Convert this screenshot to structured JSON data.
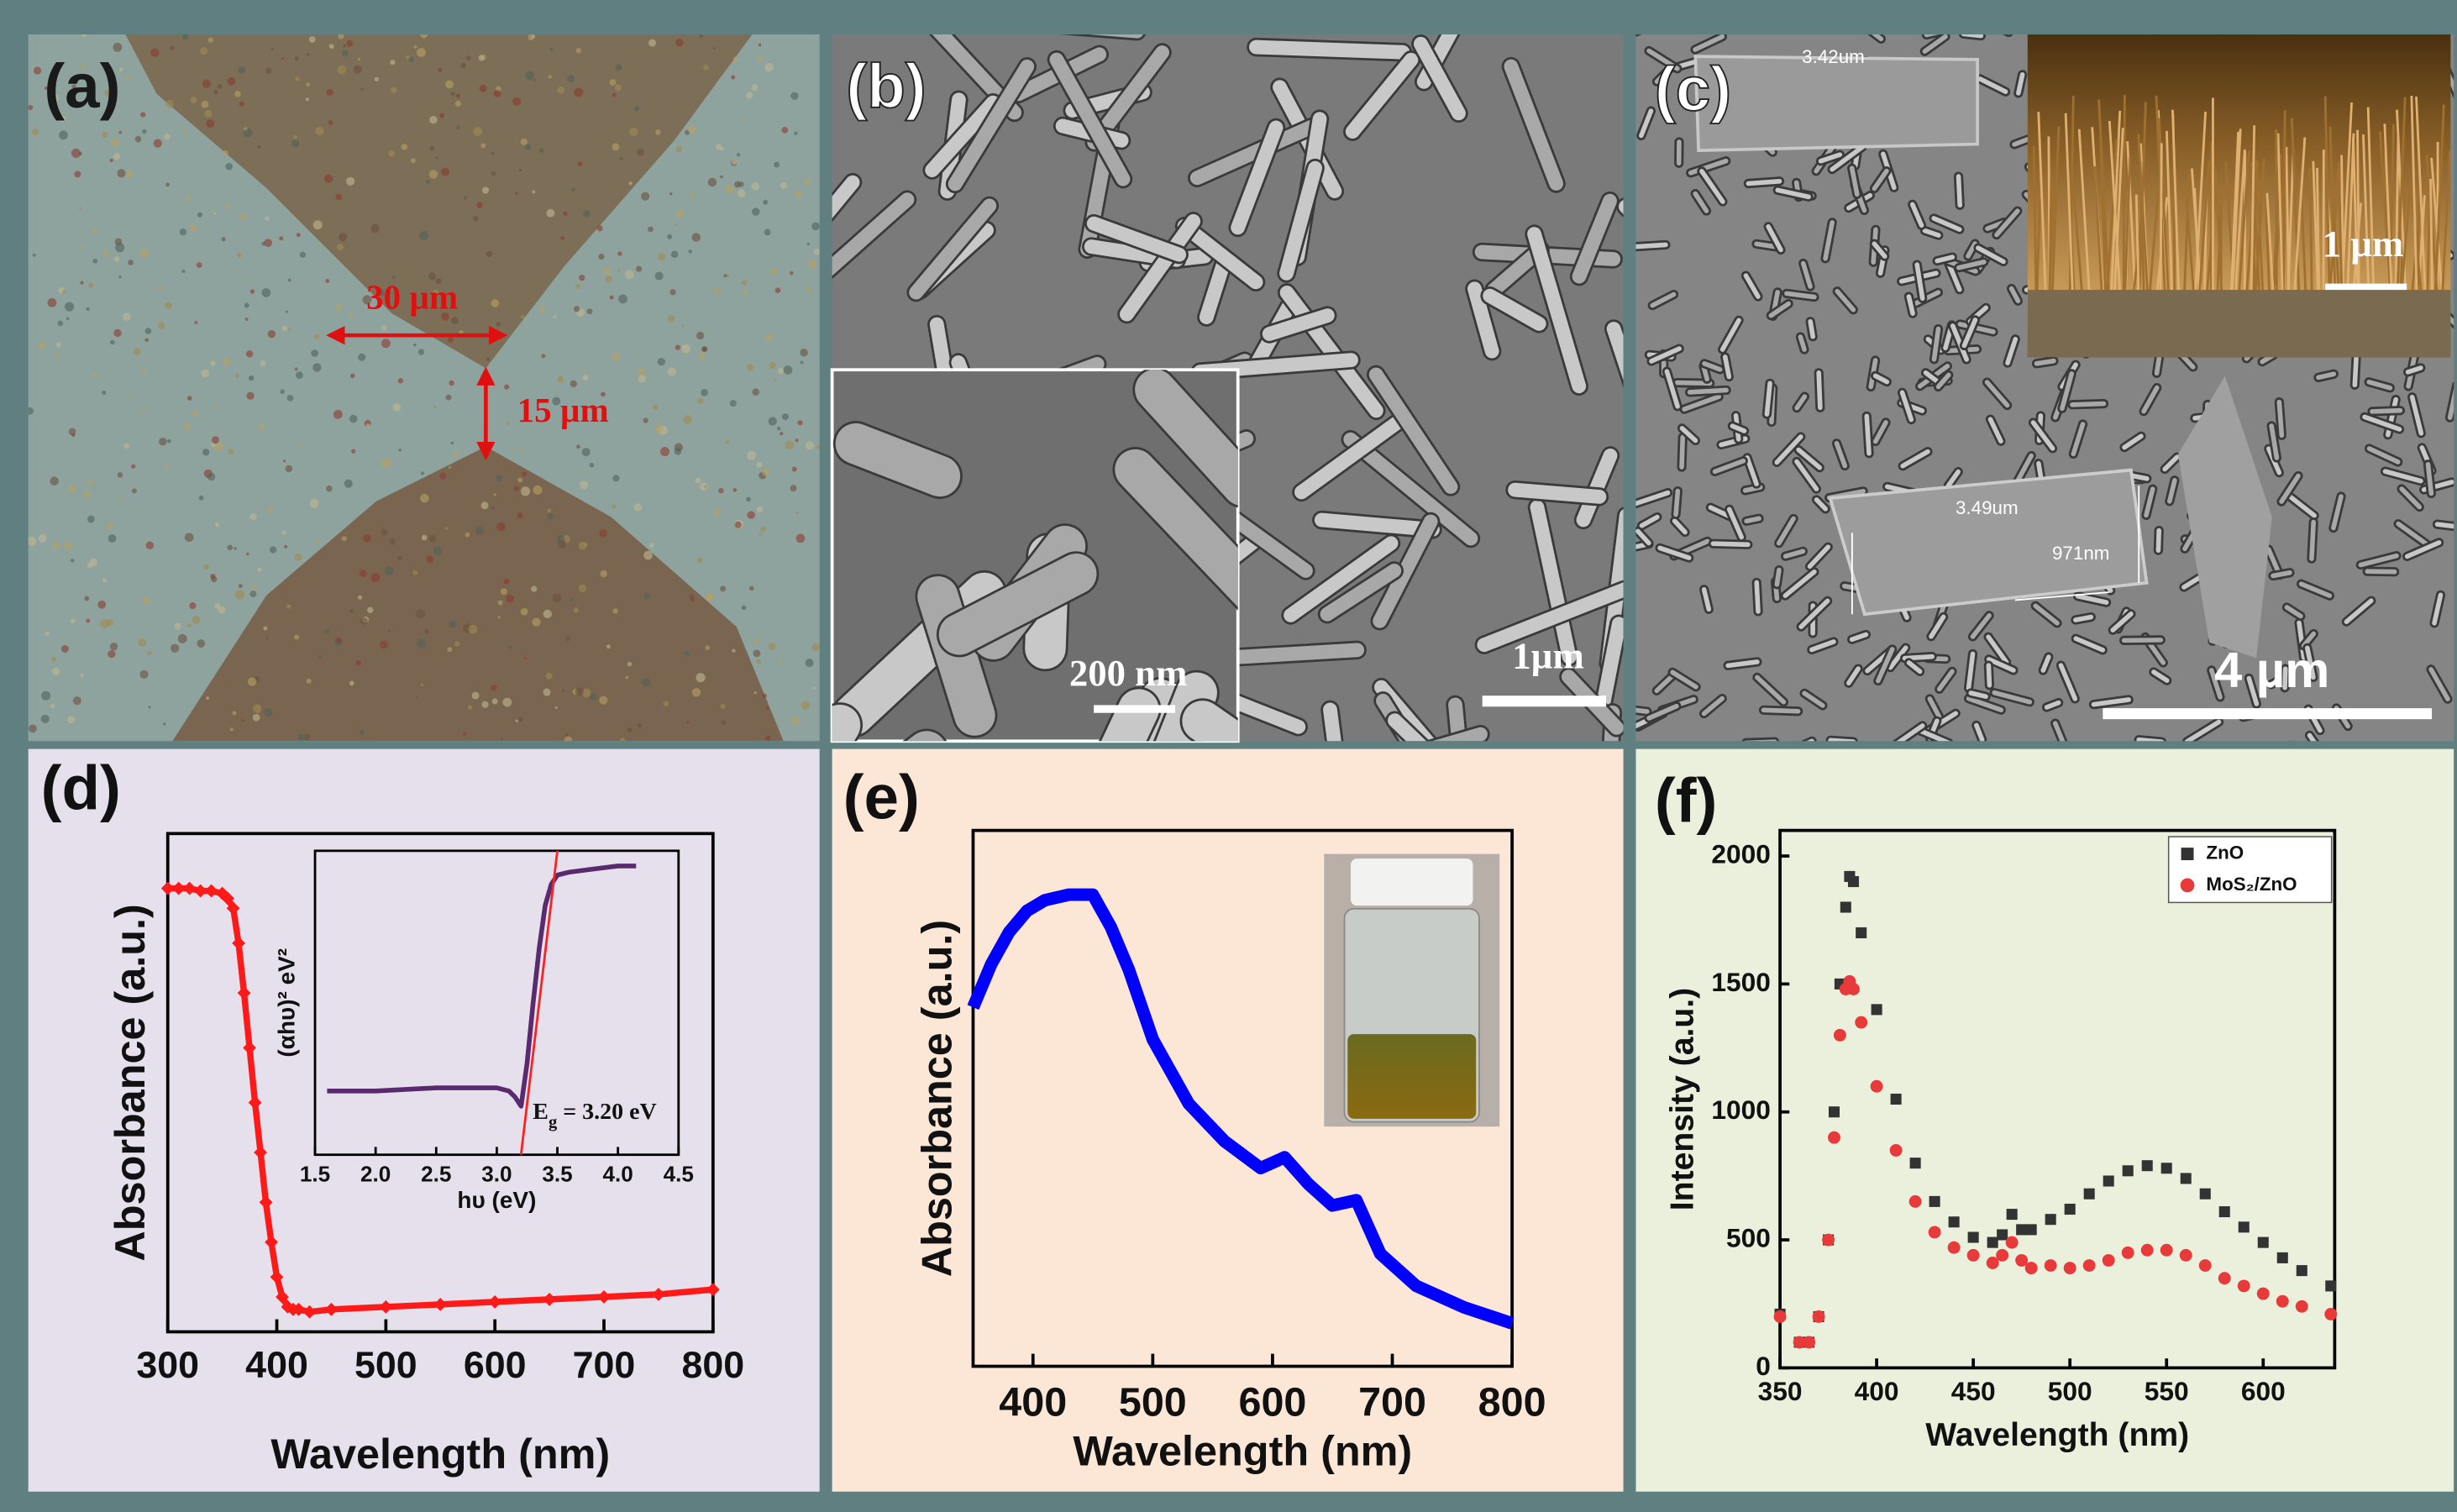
{
  "panels": {
    "a": {
      "label": "(a)",
      "scale_labels": [
        "30 µm",
        "15 µm"
      ]
    },
    "b": {
      "label": "(b)",
      "inset_scale": "200 nm",
      "scale": "1µm"
    },
    "c": {
      "label": "(c)",
      "measurements": [
        "3.42um",
        "3.49um",
        "971nm"
      ],
      "inset_scale": "1 µm",
      "scale": "4 µm"
    },
    "d": {
      "label": "(d)"
    },
    "e": {
      "label": "(e)"
    },
    "f": {
      "label": "(f)"
    }
  },
  "chart_data": [
    {
      "type": "line",
      "x_label": "Wavelength (nm)",
      "y_label": "Absorbance (a.u.)",
      "xlim": [
        300,
        800
      ],
      "xticks": [
        300,
        400,
        500,
        600,
        700,
        800
      ],
      "ylim": [
        0,
        1
      ],
      "color": "#ff1a1a",
      "x": [
        300,
        310,
        320,
        330,
        340,
        350,
        355,
        360,
        365,
        370,
        375,
        380,
        385,
        390,
        395,
        400,
        405,
        410,
        415,
        420,
        430,
        450,
        500,
        550,
        600,
        650,
        700,
        750,
        800
      ],
      "values": [
        0.89,
        0.89,
        0.89,
        0.885,
        0.885,
        0.88,
        0.87,
        0.85,
        0.78,
        0.68,
        0.57,
        0.46,
        0.36,
        0.26,
        0.18,
        0.11,
        0.07,
        0.05,
        0.045,
        0.045,
        0.04,
        0.045,
        0.05,
        0.055,
        0.06,
        0.065,
        0.07,
        0.075,
        0.085
      ]
    },
    {
      "type": "line",
      "x_label": "hυ (eV)",
      "y_label": "(αhυ)² eV²",
      "xlim": [
        1.5,
        4.5
      ],
      "xticks": [
        1.5,
        {
          "value": 2,
          "label": "2.0"
        },
        2.5,
        {
          "value": 3,
          "label": "3.0"
        },
        3.5,
        {
          "value": 4,
          "label": "4.0"
        },
        4.5
      ],
      "ylim": [
        0,
        1
      ],
      "color": "#5a2a6e",
      "x": [
        1.6,
        2.0,
        2.5,
        3.0,
        3.1,
        3.15,
        3.2,
        3.25,
        3.3,
        3.35,
        3.4,
        3.45,
        3.5,
        3.6,
        3.8,
        4.0,
        4.15
      ],
      "values": [
        0.21,
        0.21,
        0.22,
        0.22,
        0.21,
        0.19,
        0.16,
        0.3,
        0.5,
        0.68,
        0.82,
        0.89,
        0.92,
        0.93,
        0.94,
        0.95,
        0.95
      ],
      "fit": {
        "color": "#ff2020",
        "x": [
          3.2,
          3.5
        ],
        "y": [
          0,
          1
        ]
      },
      "annotation": [
        {
          "text": "E"
        },
        {
          "text": "g",
          "sub": true
        },
        {
          "text": " = 3.20 eV"
        }
      ]
    },
    {
      "type": "line",
      "x_label": "Wavelength (nm)",
      "y_label": "Absorbance (a.u.)",
      "xlim": [
        350,
        800
      ],
      "xticks": [
        400,
        500,
        600,
        700,
        800
      ],
      "ylim": [
        0,
        1
      ],
      "color": "#0000ff",
      "x": [
        350,
        365,
        380,
        395,
        410,
        430,
        450,
        465,
        480,
        500,
        530,
        560,
        590,
        610,
        630,
        650,
        670,
        690,
        720,
        760,
        800
      ],
      "values": [
        0.67,
        0.75,
        0.81,
        0.85,
        0.87,
        0.88,
        0.88,
        0.82,
        0.74,
        0.61,
        0.49,
        0.42,
        0.37,
        0.39,
        0.34,
        0.3,
        0.31,
        0.21,
        0.15,
        0.11,
        0.08
      ]
    },
    {
      "type": "scatter",
      "x_label": "Wavelength (nm)",
      "y_label": "Intensity (a.u.)",
      "xlim": [
        350,
        637
      ],
      "xticks": [
        350,
        400,
        450,
        500,
        550,
        600
      ],
      "ylim": [
        0,
        2100
      ],
      "yticks": [
        0,
        500,
        1000,
        1500,
        2000
      ],
      "legend": "top-right",
      "x": [
        350,
        360,
        365,
        370,
        375,
        378,
        381,
        384,
        386,
        388,
        392,
        400,
        410,
        420,
        430,
        440,
        450,
        460,
        465,
        470,
        475,
        480,
        490,
        500,
        510,
        520,
        530,
        540,
        550,
        560,
        570,
        580,
        590,
        600,
        610,
        620,
        635
      ],
      "series": [
        {
          "name": "ZnO",
          "color": "#333333",
          "marker": "square",
          "values": [
            210,
            100,
            100,
            200,
            500,
            1000,
            1500,
            1800,
            1920,
            1900,
            1700,
            1400,
            1050,
            800,
            650,
            570,
            510,
            490,
            520,
            600,
            540,
            540,
            580,
            620,
            680,
            730,
            770,
            790,
            780,
            740,
            680,
            610,
            550,
            490,
            430,
            380,
            320
          ]
        },
        {
          "name": "MoS₂/ZnO",
          "color": "#e83a3a",
          "marker": "circle",
          "values": [
            200,
            100,
            100,
            200,
            500,
            900,
            1300,
            1480,
            1510,
            1480,
            1350,
            1100,
            850,
            650,
            530,
            470,
            440,
            410,
            440,
            490,
            420,
            390,
            400,
            390,
            400,
            420,
            450,
            460,
            460,
            440,
            400,
            350,
            320,
            290,
            260,
            240,
            210
          ]
        }
      ]
    }
  ]
}
